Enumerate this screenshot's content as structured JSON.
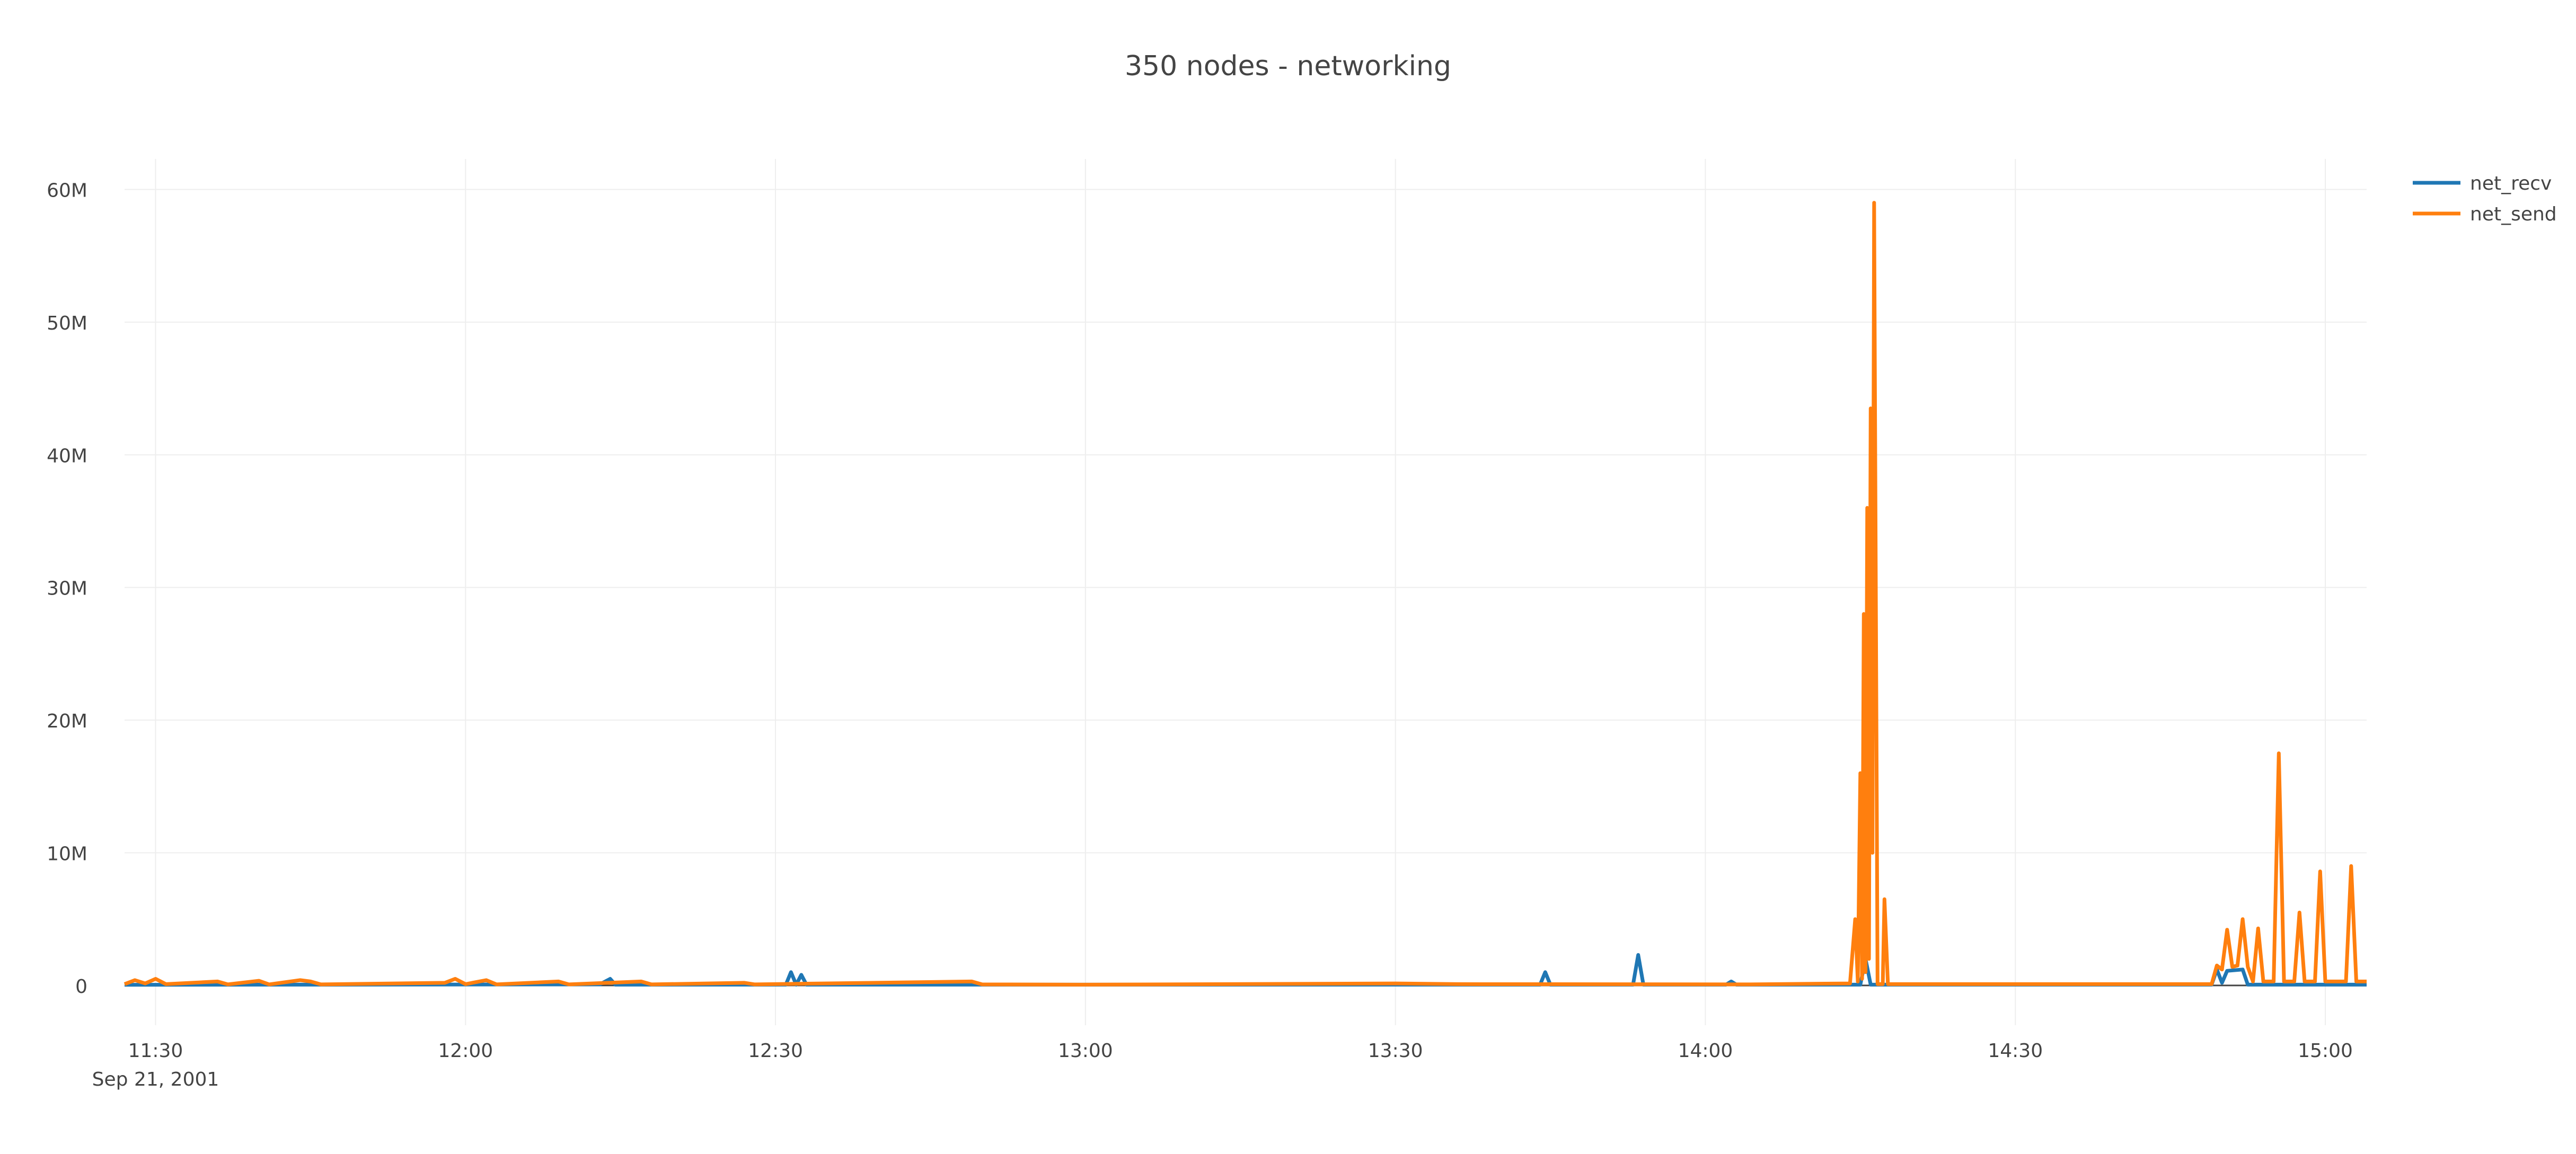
{
  "chart_data": {
    "type": "line",
    "title": "350 nodes - networking",
    "xlabel": "",
    "ylabel": "",
    "x_tick_labels": [
      "11:30",
      "12:00",
      "12:30",
      "13:00",
      "13:30",
      "14:00",
      "14:30",
      "15:00"
    ],
    "x_date_label": "Sep 21, 2001",
    "x_range": [
      "2001-09-21 11:27",
      "2001-09-21 15:04"
    ],
    "y_tick_labels": [
      "0",
      "10M",
      "20M",
      "30M",
      "40M",
      "50M",
      "60M"
    ],
    "y_ticks": [
      0,
      10000000,
      20000000,
      30000000,
      40000000,
      50000000,
      60000000
    ],
    "ylim": [
      -3000000,
      62300000
    ],
    "grid": true,
    "legend_position": "top-right",
    "series": [
      {
        "name": "net_recv",
        "color": "#1f77b4",
        "points": [
          [
            "2001-09-21 11:27",
            50000
          ],
          [
            "2001-09-21 11:43",
            60000
          ],
          [
            "2001-09-21 12:13",
            80000
          ],
          [
            "2001-09-21 12:14",
            500000
          ],
          [
            "2001-09-21 12:14:30",
            60000
          ],
          [
            "2001-09-21 12:31",
            60000
          ],
          [
            "2001-09-21 12:31:30",
            1000000
          ],
          [
            "2001-09-21 12:32",
            60000
          ],
          [
            "2001-09-21 12:32:30",
            800000
          ],
          [
            "2001-09-21 12:33",
            60000
          ],
          [
            "2001-09-21 13:44",
            60000
          ],
          [
            "2001-09-21 13:44:30",
            1000000
          ],
          [
            "2001-09-21 13:45",
            60000
          ],
          [
            "2001-09-21 13:53",
            60000
          ],
          [
            "2001-09-21 13:53:30",
            2300000
          ],
          [
            "2001-09-21 13:54",
            60000
          ],
          [
            "2001-09-21 14:02",
            60000
          ],
          [
            "2001-09-21 14:02:30",
            300000
          ],
          [
            "2001-09-21 14:03",
            60000
          ],
          [
            "2001-09-21 14:15",
            60000
          ],
          [
            "2001-09-21 14:15:30",
            2000000
          ],
          [
            "2001-09-21 14:16",
            60000
          ],
          [
            "2001-09-21 14:49",
            60000
          ],
          [
            "2001-09-21 14:49:30",
            1200000
          ],
          [
            "2001-09-21 14:50",
            200000
          ],
          [
            "2001-09-21 14:50:30",
            1100000
          ],
          [
            "2001-09-21 14:52",
            1200000
          ],
          [
            "2001-09-21 14:52:30",
            60000
          ],
          [
            "2001-09-21 15:04",
            60000
          ]
        ]
      },
      {
        "name": "net_send",
        "color": "#ff7f0e",
        "points": [
          [
            "2001-09-21 11:27",
            100000
          ],
          [
            "2001-09-21 11:28",
            400000
          ],
          [
            "2001-09-21 11:29",
            150000
          ],
          [
            "2001-09-21 11:30",
            500000
          ],
          [
            "2001-09-21 11:31",
            100000
          ],
          [
            "2001-09-21 11:36",
            300000
          ],
          [
            "2001-09-21 11:37",
            80000
          ],
          [
            "2001-09-21 11:40",
            350000
          ],
          [
            "2001-09-21 11:41",
            80000
          ],
          [
            "2001-09-21 11:44",
            400000
          ],
          [
            "2001-09-21 11:45",
            300000
          ],
          [
            "2001-09-21 11:46",
            80000
          ],
          [
            "2001-09-21 11:58",
            200000
          ],
          [
            "2001-09-21 11:59",
            500000
          ],
          [
            "2001-09-21 12:00",
            100000
          ],
          [
            "2001-09-21 12:02",
            400000
          ],
          [
            "2001-09-21 12:03",
            80000
          ],
          [
            "2001-09-21 12:09",
            300000
          ],
          [
            "2001-09-21 12:10",
            80000
          ],
          [
            "2001-09-21 12:17",
            300000
          ],
          [
            "2001-09-21 12:18",
            80000
          ],
          [
            "2001-09-21 12:27",
            200000
          ],
          [
            "2001-09-21 12:28",
            80000
          ],
          [
            "2001-09-21 12:49",
            300000
          ],
          [
            "2001-09-21 12:50",
            80000
          ],
          [
            "2001-09-21 13:00",
            60000
          ],
          [
            "2001-09-21 13:30",
            150000
          ],
          [
            "2001-09-21 13:36",
            100000
          ],
          [
            "2001-09-21 14:04",
            80000
          ],
          [
            "2001-09-21 14:14",
            150000
          ],
          [
            "2001-09-21 14:14:30",
            5000000
          ],
          [
            "2001-09-21 14:14:45",
            300000
          ],
          [
            "2001-09-21 14:15",
            16000000
          ],
          [
            "2001-09-21 14:15:10",
            500000
          ],
          [
            "2001-09-21 14:15:20",
            28000000
          ],
          [
            "2001-09-21 14:15:30",
            1000000
          ],
          [
            "2001-09-21 14:15:40",
            36000000
          ],
          [
            "2001-09-21 14:15:50",
            2000000
          ],
          [
            "2001-09-21 14:16",
            43500000
          ],
          [
            "2001-09-21 14:16:10",
            10000000
          ],
          [
            "2001-09-21 14:16:20",
            59000000
          ],
          [
            "2001-09-21 14:16:40",
            100000
          ],
          [
            "2001-09-21 14:17:10",
            100000
          ],
          [
            "2001-09-21 14:17:20",
            6500000
          ],
          [
            "2001-09-21 14:17:40",
            100000
          ],
          [
            "2001-09-21 14:49",
            100000
          ],
          [
            "2001-09-21 14:49:30",
            1500000
          ],
          [
            "2001-09-21 14:50",
            1200000
          ],
          [
            "2001-09-21 14:50:30",
            4200000
          ],
          [
            "2001-09-21 14:51",
            1400000
          ],
          [
            "2001-09-21 14:51:30",
            1500000
          ],
          [
            "2001-09-21 14:52",
            5000000
          ],
          [
            "2001-09-21 14:52:30",
            1400000
          ],
          [
            "2001-09-21 14:53",
            300000
          ],
          [
            "2001-09-21 14:53:30",
            4300000
          ],
          [
            "2001-09-21 14:54",
            300000
          ],
          [
            "2001-09-21 14:55",
            300000
          ],
          [
            "2001-09-21 14:55:30",
            17500000
          ],
          [
            "2001-09-21 14:56",
            300000
          ],
          [
            "2001-09-21 14:57",
            300000
          ],
          [
            "2001-09-21 14:57:30",
            5500000
          ],
          [
            "2001-09-21 14:58",
            300000
          ],
          [
            "2001-09-21 14:59",
            300000
          ],
          [
            "2001-09-21 14:59:30",
            8600000
          ],
          [
            "2001-09-21 15:00",
            300000
          ],
          [
            "2001-09-21 15:02",
            300000
          ],
          [
            "2001-09-21 15:02:30",
            9000000
          ],
          [
            "2001-09-21 15:03",
            300000
          ],
          [
            "2001-09-21 15:04",
            300000
          ]
        ]
      }
    ]
  }
}
